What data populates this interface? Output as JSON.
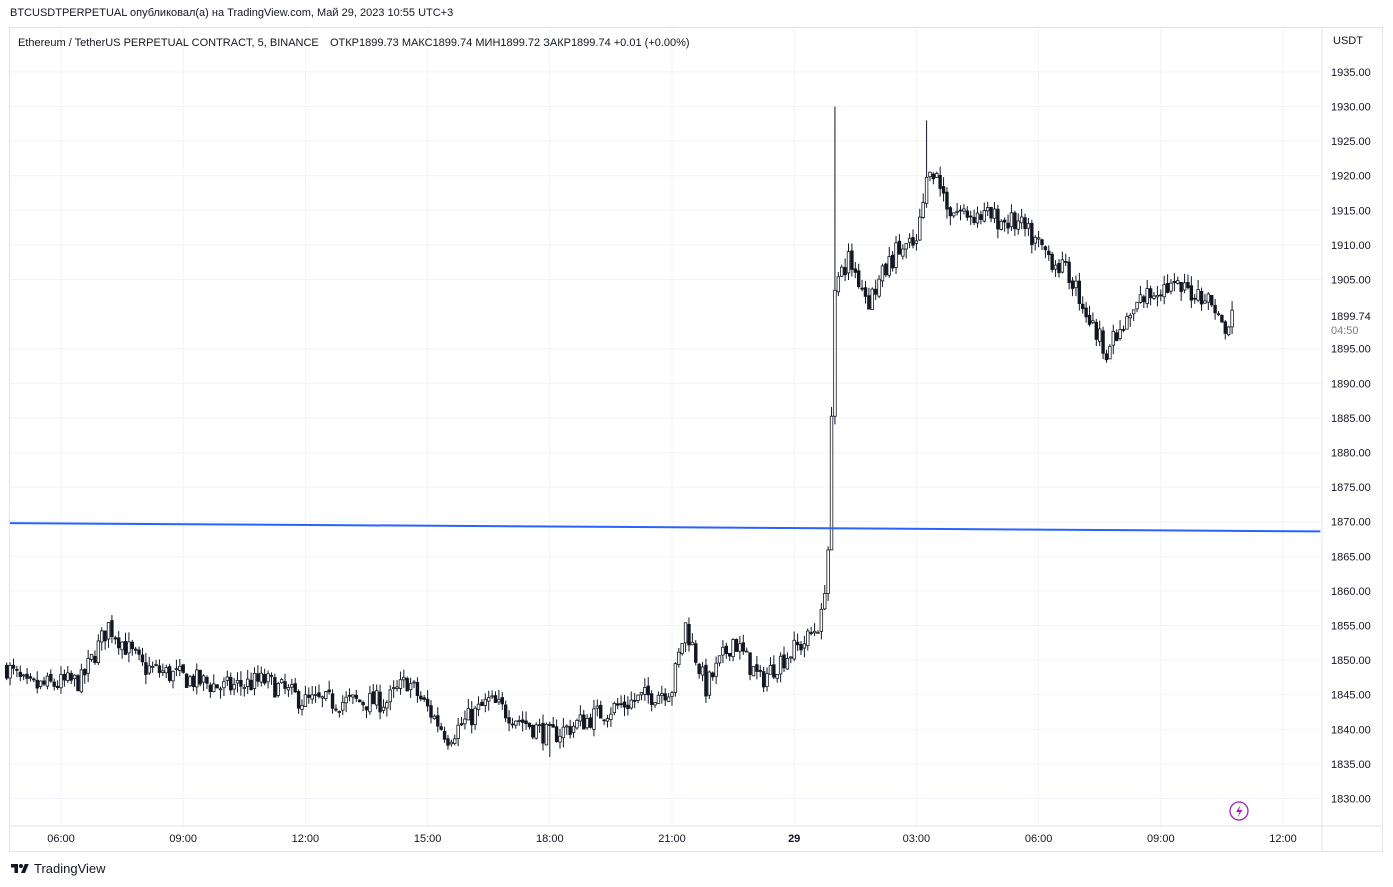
{
  "header": {
    "published_line": "BTCUSDTPERPETUAL опубликовал(а) на TradingView.com, Май 29, 2023 10:55 UTC+3"
  },
  "footer": {
    "brand": "TradingView",
    "logo_icon": "tradingview-logo-icon"
  },
  "colors": {
    "candles": "#131722",
    "trendline": "#2962ff",
    "grid": "#f0f3fa",
    "axis_text": "#131722",
    "lightning": "#9c27b0"
  },
  "chart_data": {
    "type": "candlestick",
    "title": "Ethereum / TetherUS PERPETUAL CONTRACT, 5, BINANCE",
    "ohlc_label": {
      "open_label": "ОТКР",
      "open": "1899.73",
      "high_label": "МАКС",
      "high": "1899.74",
      "low_label": "МИН",
      "low": "1899.72",
      "close_label": "ЗАКР",
      "close": "1899.74",
      "change": "+0.01 (+0.00%)"
    },
    "currency": "USDT",
    "ylim": [
      1827,
      1940
    ],
    "y_ticks": [
      "1935.00",
      "1930.00",
      "1925.00",
      "1920.00",
      "1915.00",
      "1910.00",
      "1905.00",
      "1895.00",
      "1890.00",
      "1885.00",
      "1880.00",
      "1875.00",
      "1870.00",
      "1865.00",
      "1860.00",
      "1855.00",
      "1850.00",
      "1845.00",
      "1840.00",
      "1835.00",
      "1830.00"
    ],
    "last_price": "1899.74",
    "countdown": "04:50",
    "x_ticks": [
      "06:00",
      "09:00",
      "12:00",
      "15:00",
      "18:00",
      "21:00",
      "29",
      "03:00",
      "06:00",
      "09:00",
      "12:00"
    ],
    "time_range": [
      "28 May 04:40",
      "29 May 10:45"
    ],
    "time_interval_minutes": 5,
    "trendline": {
      "start": {
        "time": "28 May 04:40",
        "price": 1869.8
      },
      "end": {
        "time": "29 May 12:55",
        "price": 1868.6
      }
    },
    "price_path_keypoints": [
      {
        "time": "28 May 04:40",
        "price": 1849
      },
      {
        "time": "28 May 05:10",
        "price": 1846
      },
      {
        "time": "28 May 06:30",
        "price": 1847
      },
      {
        "time": "28 May 07:10",
        "price": 1855
      },
      {
        "time": "28 May 08:00",
        "price": 1849
      },
      {
        "time": "28 May 10:00",
        "price": 1846
      },
      {
        "time": "28 May 11:00",
        "price": 1847
      },
      {
        "time": "28 May 12:00",
        "price": 1844
      },
      {
        "time": "28 May 14:00",
        "price": 1844
      },
      {
        "time": "28 May 14:30",
        "price": 1847
      },
      {
        "time": "28 May 15:30",
        "price": 1839
      },
      {
        "time": "28 May 16:30",
        "price": 1844
      },
      {
        "time": "28 May 18:00",
        "price": 1839
      },
      {
        "time": "28 May 19:30",
        "price": 1843
      },
      {
        "time": "28 May 21:00",
        "price": 1846
      },
      {
        "time": "28 May 21:20",
        "price": 1855
      },
      {
        "time": "28 May 21:50",
        "price": 1846
      },
      {
        "time": "28 May 22:30",
        "price": 1853
      },
      {
        "time": "28 May 23:10",
        "price": 1847
      },
      {
        "time": "28 May 23:40",
        "price": 1850
      },
      {
        "time": "29 May 00:20",
        "price": 1853
      },
      {
        "time": "29 May 00:40",
        "price": 1856
      },
      {
        "time": "29 May 00:50",
        "price": 1866
      },
      {
        "time": "29 May 01:00",
        "price": 1904
      },
      {
        "time": "29 May 01:20",
        "price": 1908
      },
      {
        "time": "29 May 01:50",
        "price": 1902
      },
      {
        "time": "29 May 02:30",
        "price": 1909
      },
      {
        "time": "29 May 03:00",
        "price": 1910
      },
      {
        "time": "29 May 03:20",
        "price": 1922
      },
      {
        "time": "29 May 03:50",
        "price": 1915
      },
      {
        "time": "29 May 04:50",
        "price": 1914
      },
      {
        "time": "29 May 05:30",
        "price": 1913
      },
      {
        "time": "29 May 06:10",
        "price": 1909
      },
      {
        "time": "29 May 06:50",
        "price": 1905
      },
      {
        "time": "29 May 07:20",
        "price": 1898
      },
      {
        "time": "29 May 07:40",
        "price": 1895
      },
      {
        "time": "29 May 08:00",
        "price": 1897
      },
      {
        "time": "29 May 08:30",
        "price": 1902
      },
      {
        "time": "29 May 09:00",
        "price": 1904
      },
      {
        "time": "29 May 10:00",
        "price": 1903
      },
      {
        "time": "29 May 10:20",
        "price": 1901
      },
      {
        "time": "29 May 10:35",
        "price": 1897
      },
      {
        "time": "29 May 10:45",
        "price": 1899.74
      }
    ],
    "annotated_highs_lows": {
      "spike_high": {
        "time": "29 May 01:00",
        "price": 1930
      },
      "session_high": {
        "time": "29 May 03:15",
        "price": 1928
      },
      "low": {
        "time": "28 May 18:00",
        "price": 1836
      }
    },
    "grid": true
  }
}
